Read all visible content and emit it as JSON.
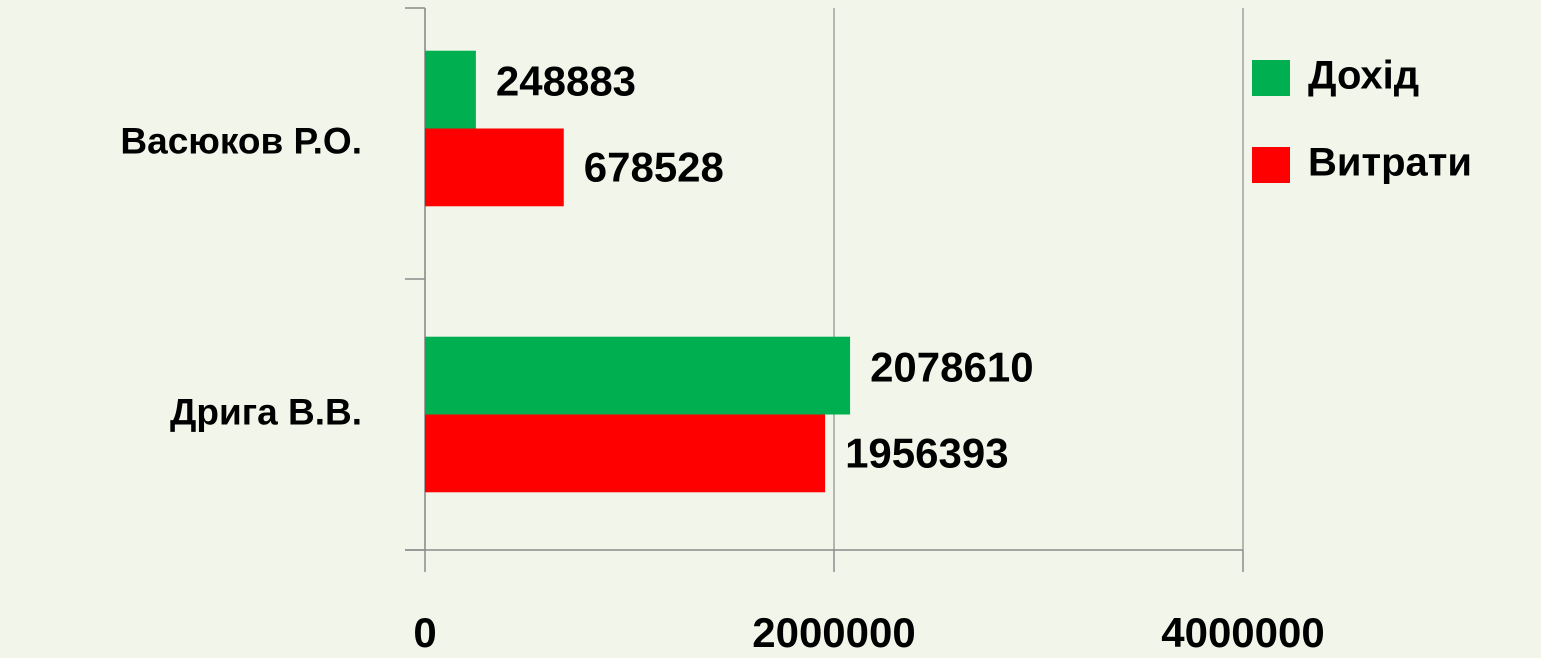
{
  "chart_data": {
    "type": "hbar",
    "categories": [
      "Васюков Р.О.",
      "Дрига В.В."
    ],
    "series": [
      {
        "name": "Дохід",
        "color": "#00b050",
        "values": [
          248883,
          2078610
        ]
      },
      {
        "name": "Витрати",
        "color": "#ff0000",
        "values": [
          678528,
          1956393
        ]
      }
    ],
    "xlim": [
      0,
      4000000
    ],
    "xticks": [
      0,
      2000000,
      4000000
    ],
    "grid": true,
    "legend": "top-right"
  }
}
